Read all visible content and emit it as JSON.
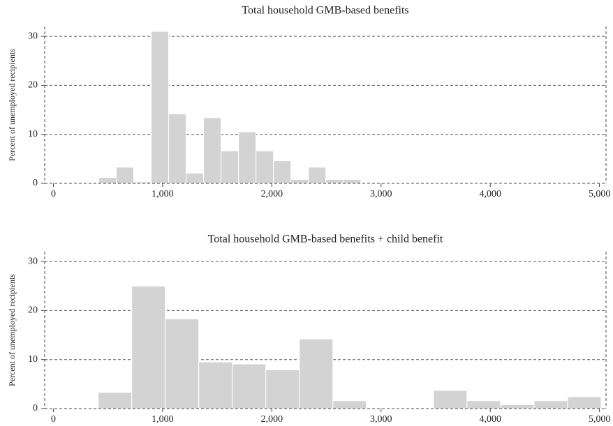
{
  "chart_data": [
    {
      "type": "histogram",
      "title": "Total household GMB-based benefits",
      "y_label": "Percent of unemployed recipients",
      "bins": [
        415,
        575,
        735,
        895,
        1055,
        1215,
        1375,
        1535,
        1695,
        1855,
        2015,
        2175,
        2335,
        2495,
        2655,
        2815
      ],
      "values": [
        1.2,
        3.3,
        0.3,
        31,
        14.2,
        2.1,
        13.4,
        6.6,
        10.5,
        6.6,
        4.6,
        0.8,
        3.3,
        0.8,
        0.8
      ],
      "color": "#d3d3d3",
      "xlim": [
        -80,
        5060
      ],
      "ylim": [
        0,
        32
      ],
      "xticks": [
        0,
        {
          "value": 1000,
          "label": "1,000"
        },
        {
          "value": 2000,
          "label": "2,000"
        },
        {
          "value": 3000,
          "label": "3,000"
        },
        {
          "value": 4000,
          "label": "4,000"
        },
        {
          "value": 5000,
          "label": "5,000"
        }
      ],
      "yticks": [
        0,
        10,
        20,
        30
      ],
      "grid": true
    },
    {
      "type": "histogram",
      "title": "Total household GMB-based benefits + child benefit",
      "y_label": "Percent of unemployed recipients",
      "bins": [
        410,
        717,
        1024,
        1331,
        1638,
        1945,
        2252,
        2559,
        2866,
        3173,
        3480,
        3787,
        4094,
        4401,
        4708,
        5015
      ],
      "values": [
        3.3,
        25,
        18.3,
        9.5,
        9.1,
        7.9,
        14.2,
        1.6,
        0,
        0,
        3.7,
        1.6,
        0.8,
        1.6,
        2.4
      ],
      "color": "#d3d3d3",
      "xlim": [
        -80,
        5060
      ],
      "ylim": [
        0,
        32
      ],
      "xticks": [
        0,
        {
          "value": 1000,
          "label": "1,000"
        },
        {
          "value": 2000,
          "label": "2,000"
        },
        {
          "value": 3000,
          "label": "3,000"
        },
        {
          "value": 4000,
          "label": "4,000"
        },
        {
          "value": 5000,
          "label": "5,000"
        }
      ],
      "yticks": [
        0,
        10,
        20,
        30
      ],
      "grid": true
    }
  ]
}
